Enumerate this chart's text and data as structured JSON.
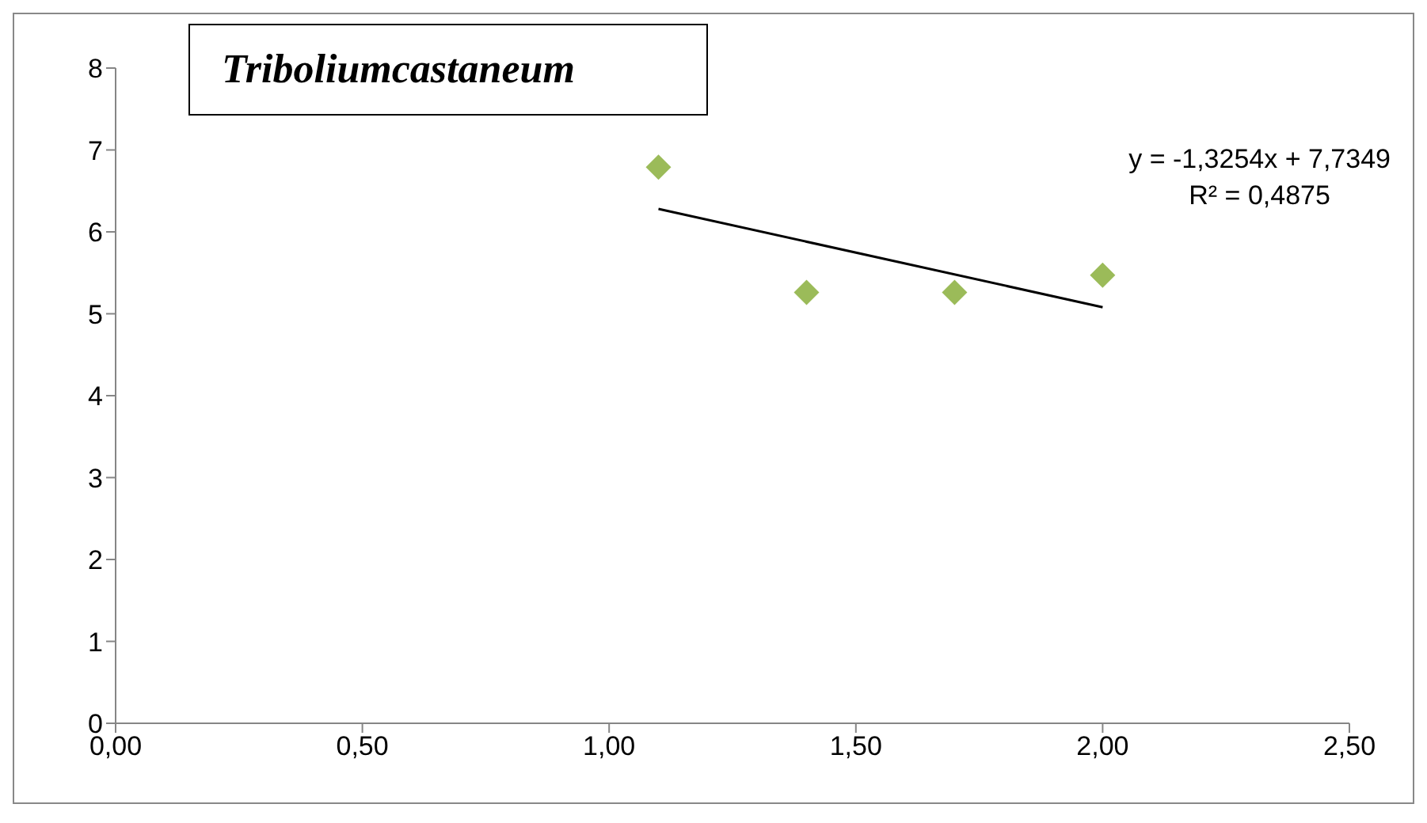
{
  "chart_data": {
    "type": "scatter",
    "title": "Triboliumcastaneum",
    "annotations": [
      "y = -1,3254x + 7,7349",
      "R² = 0,4875"
    ],
    "series": [
      {
        "color": "#9bbb59",
        "x": [
          1.1,
          1.4,
          1.7,
          2.0
        ],
        "values": [
          6.79,
          5.26,
          5.26,
          5.47
        ]
      },
      {
        "type": "line",
        "color": "#000000",
        "x": [
          1.1,
          2.0
        ],
        "values": [
          6.28,
          5.08
        ],
        "marker": "none",
        "line_style": "solid"
      }
    ],
    "marker": "diamond",
    "grid": false,
    "legend": false,
    "xlim": [
      0,
      2.5
    ],
    "xticks": [
      {
        "value": 0,
        "label": "0,00"
      },
      {
        "value": 0.5,
        "label": "0,50"
      },
      {
        "value": 1,
        "label": "1,00"
      },
      {
        "value": 1.5,
        "label": "1,50"
      },
      {
        "value": 2,
        "label": "2,00"
      },
      {
        "value": 2.5,
        "label": "2,50"
      }
    ],
    "ylim": [
      0,
      8
    ],
    "yticks": [
      0,
      1,
      2,
      3,
      4,
      5,
      6,
      7,
      8
    ]
  }
}
